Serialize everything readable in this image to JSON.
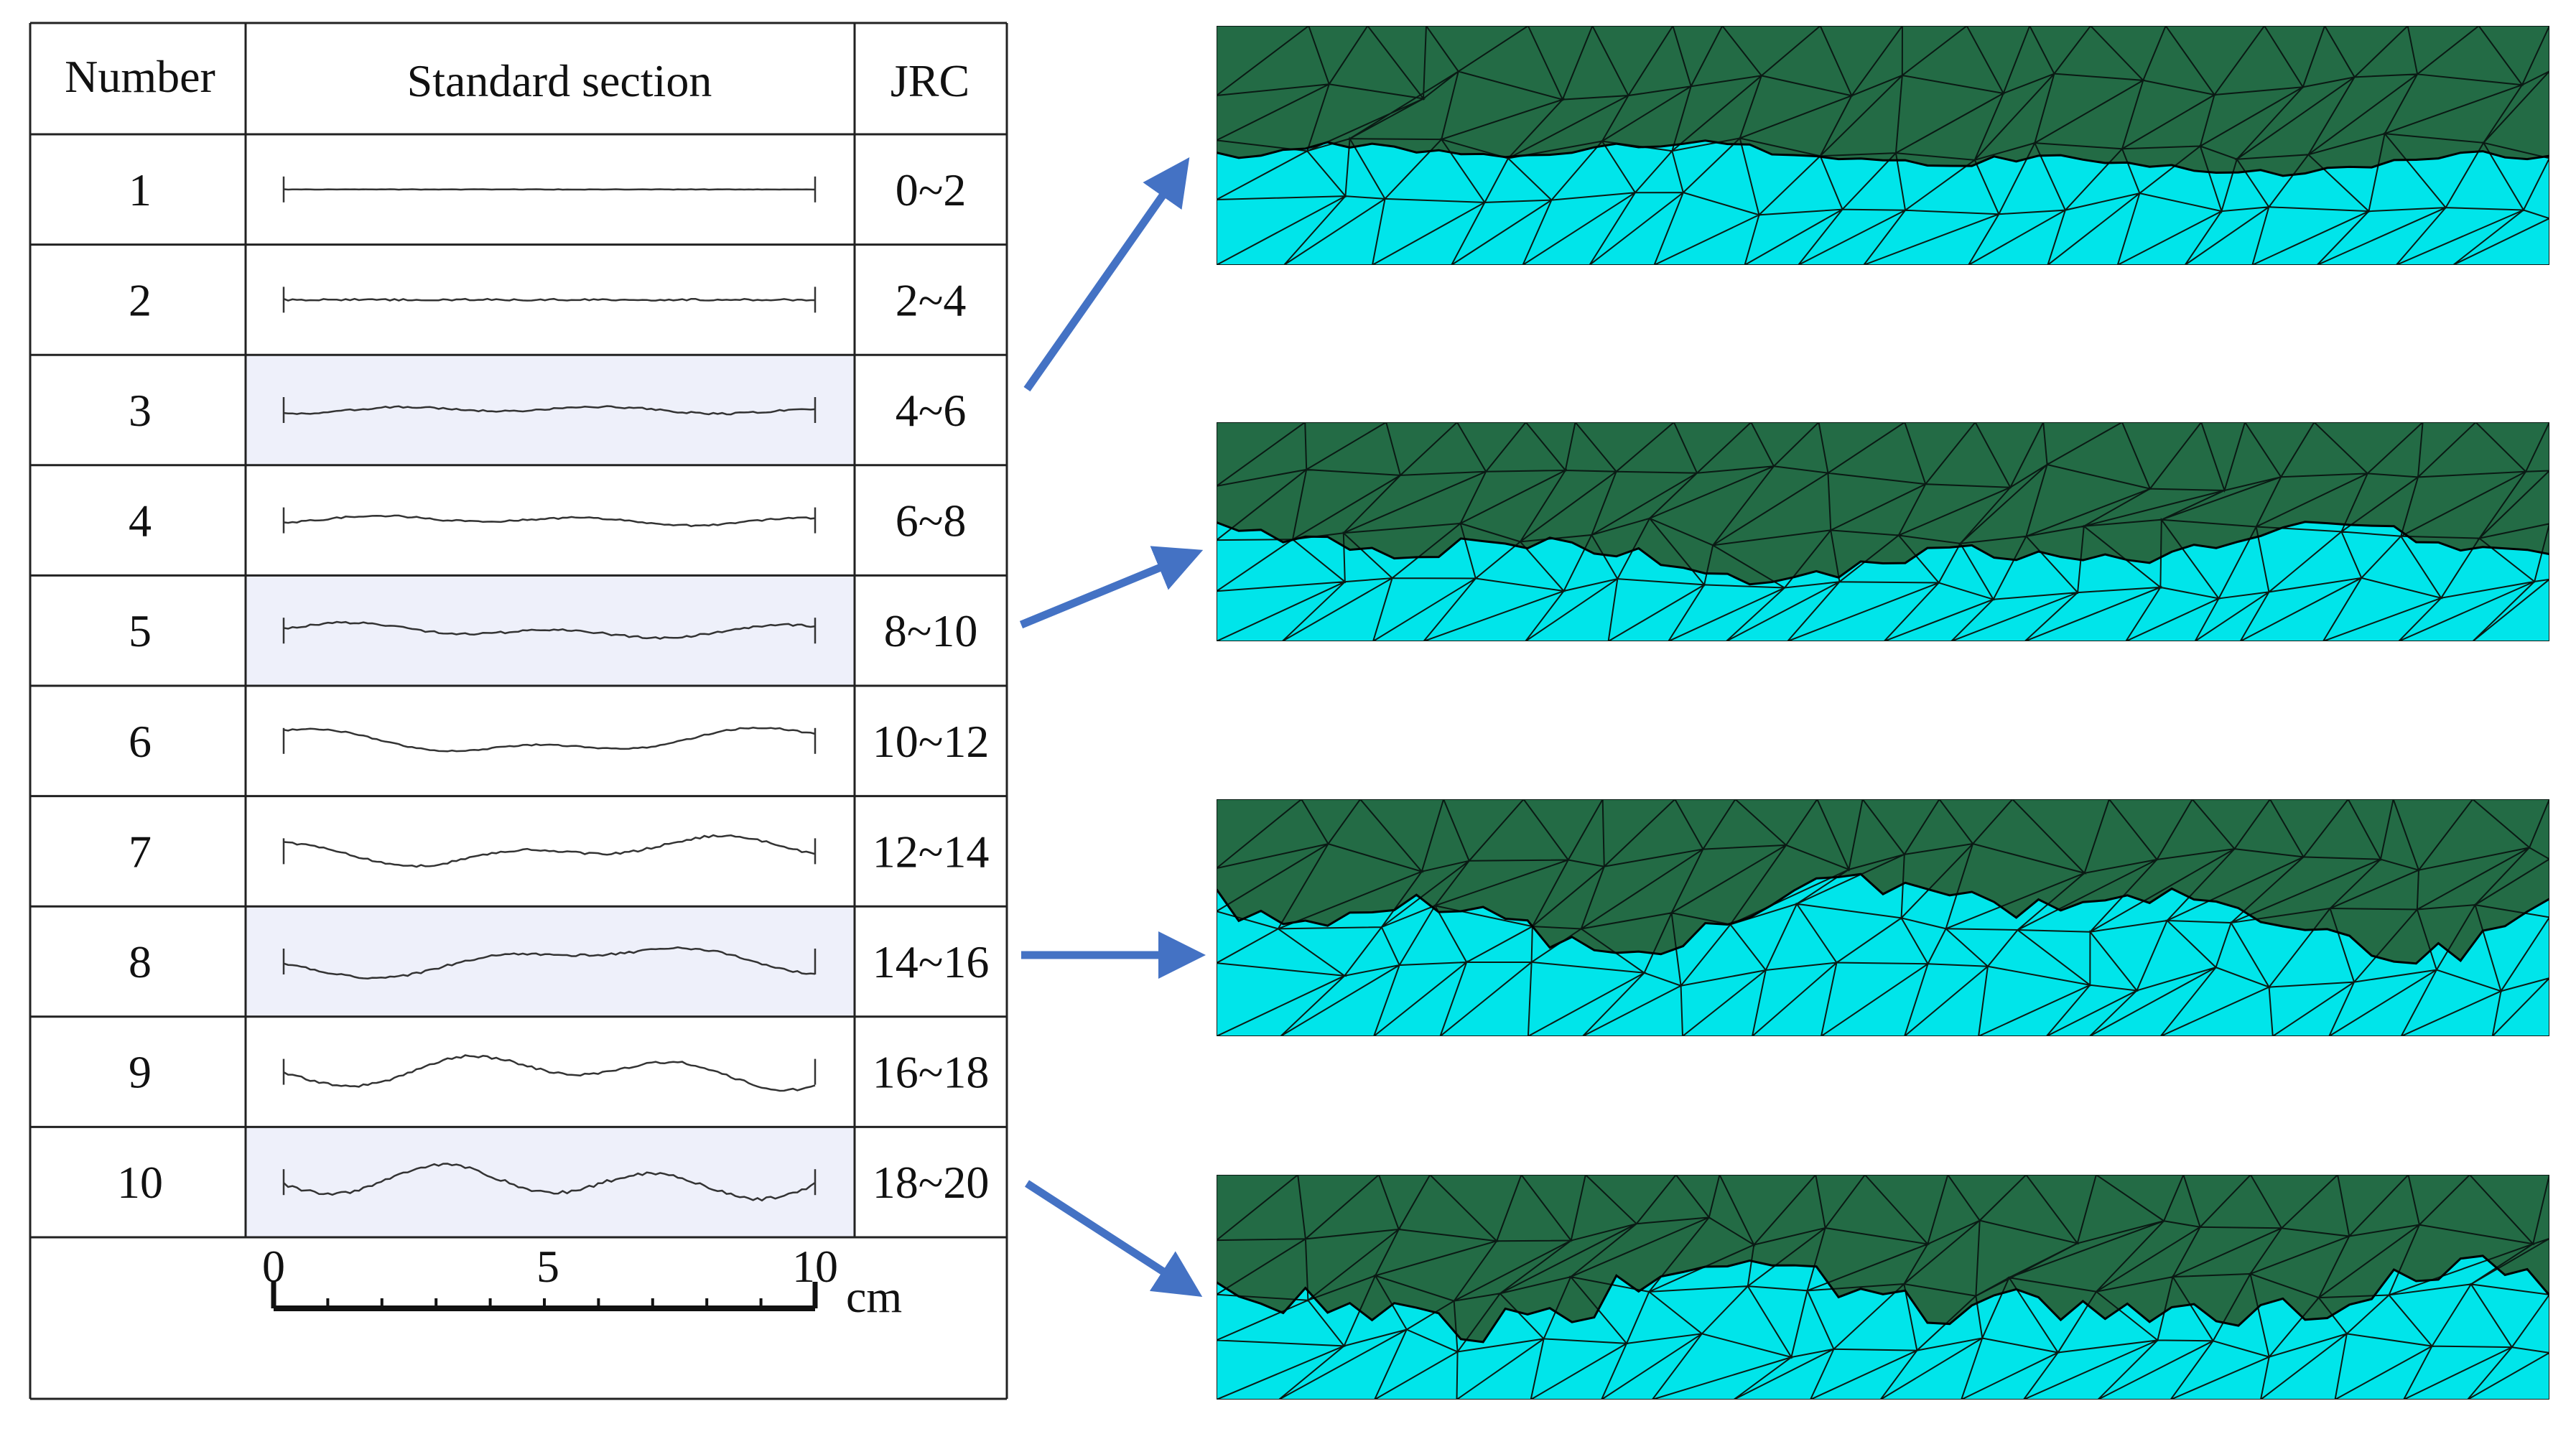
{
  "table": {
    "headers": {
      "number": "Number",
      "section": "Standard section",
      "jrc": "JRC"
    },
    "rows": [
      {
        "number": "1",
        "jrc": "0~2",
        "highlighted": false
      },
      {
        "number": "2",
        "jrc": "2~4",
        "highlighted": false
      },
      {
        "number": "3",
        "jrc": "4~6",
        "highlighted": true
      },
      {
        "number": "4",
        "jrc": "6~8",
        "highlighted": false
      },
      {
        "number": "5",
        "jrc": "8~10",
        "highlighted": true
      },
      {
        "number": "6",
        "jrc": "10~12",
        "highlighted": false
      },
      {
        "number": "7",
        "jrc": "12~14",
        "highlighted": false
      },
      {
        "number": "8",
        "jrc": "14~16",
        "highlighted": true
      },
      {
        "number": "9",
        "jrc": "16~18",
        "highlighted": false
      },
      {
        "number": "10",
        "jrc": "18~20",
        "highlighted": true
      }
    ],
    "scale": {
      "ticks": [
        "0",
        "5",
        "10"
      ],
      "unit": "cm"
    }
  },
  "mesh_panels": [
    {
      "from_row": "3"
    },
    {
      "from_row": "5"
    },
    {
      "from_row": "8"
    },
    {
      "from_row": "10"
    }
  ],
  "colors": {
    "upper_block": "#236b45",
    "lower_block": "#00e5ea",
    "arrow": "#4472c4",
    "highlight_row": "#eef0fa",
    "grid": "#222222",
    "mesh_line": "#0a1a14"
  }
}
